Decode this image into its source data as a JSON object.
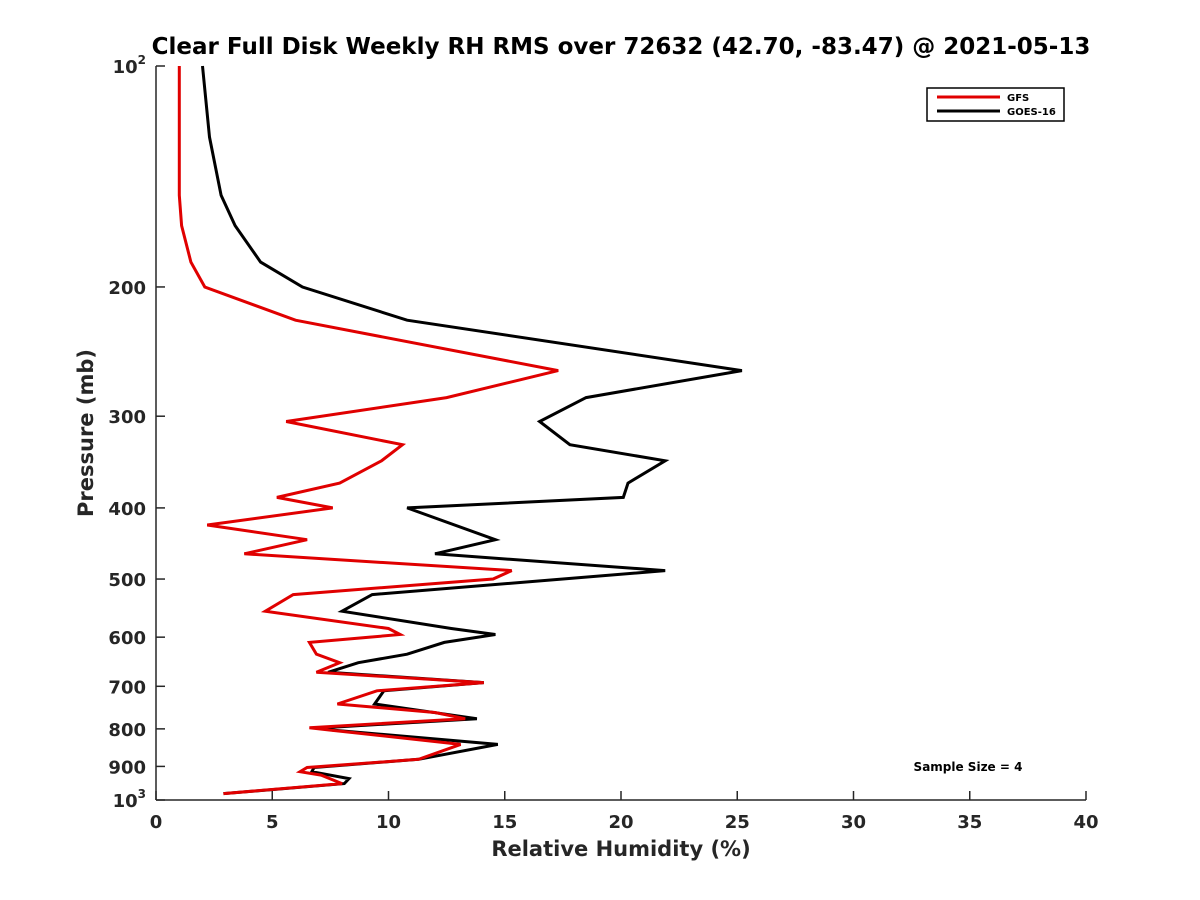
{
  "chart_data": {
    "type": "line",
    "title": "Clear Full Disk Weekly RH RMS over 72632 (42.70, -83.47) @ 2021-05-13",
    "xlabel": "Relative Humidity (%)",
    "ylabel": "Pressure (mb)",
    "xlim": [
      0,
      40
    ],
    "ylim": [
      100,
      1000
    ],
    "y_scale": "log",
    "y_reversed": true,
    "x_ticks": [
      "0",
      "5",
      "10",
      "15",
      "20",
      "25",
      "30",
      "35",
      "40"
    ],
    "y_ticks": [
      {
        "value": 100,
        "base": "10",
        "exp": "2"
      },
      {
        "value": 200,
        "label": "200"
      },
      {
        "value": 300,
        "label": "300"
      },
      {
        "value": 400,
        "label": "400"
      },
      {
        "value": 500,
        "label": "500"
      },
      {
        "value": 600,
        "label": "600"
      },
      {
        "value": 700,
        "label": "700"
      },
      {
        "value": 800,
        "label": "800"
      },
      {
        "value": 900,
        "label": "900"
      },
      {
        "value": 1000,
        "base": "10",
        "exp": "3"
      }
    ],
    "legend_position": "top-right",
    "grid": false,
    "series": [
      {
        "name": "GFS",
        "color": "#e00000",
        "points": [
          [
            1.0,
            100
          ],
          [
            1.0,
            125
          ],
          [
            1.0,
            150
          ],
          [
            1.1,
            165
          ],
          [
            1.5,
            185
          ],
          [
            2.1,
            200
          ],
          [
            6.0,
            222
          ],
          [
            17.3,
            260
          ],
          [
            12.5,
            283
          ],
          [
            5.6,
            305
          ],
          [
            10.6,
            328
          ],
          [
            9.7,
            345
          ],
          [
            7.9,
            370
          ],
          [
            5.2,
            387
          ],
          [
            7.6,
            400
          ],
          [
            2.2,
            422
          ],
          [
            6.5,
            442
          ],
          [
            3.8,
            462
          ],
          [
            15.3,
            487
          ],
          [
            14.5,
            500
          ],
          [
            5.9,
            525
          ],
          [
            4.7,
            553
          ],
          [
            10.0,
            584
          ],
          [
            10.5,
            595
          ],
          [
            6.6,
            610
          ],
          [
            6.9,
            633
          ],
          [
            7.9,
            650
          ],
          [
            6.9,
            670
          ],
          [
            14.1,
            692
          ],
          [
            9.5,
            710
          ],
          [
            7.8,
            740
          ],
          [
            12.0,
            760
          ],
          [
            13.3,
            775
          ],
          [
            6.6,
            797
          ],
          [
            7.5,
            803
          ],
          [
            13.1,
            840
          ],
          [
            11.3,
            880
          ],
          [
            6.5,
            903
          ],
          [
            6.2,
            915
          ],
          [
            7.1,
            925
          ],
          [
            8.0,
            950
          ],
          [
            2.9,
            980
          ]
        ]
      },
      {
        "name": "GOES-16",
        "color": "#000000",
        "points": [
          [
            2.0,
            100
          ],
          [
            2.3,
            125
          ],
          [
            2.8,
            150
          ],
          [
            3.4,
            165
          ],
          [
            4.5,
            185
          ],
          [
            6.3,
            200
          ],
          [
            10.8,
            222
          ],
          [
            25.2,
            260
          ],
          [
            18.5,
            283
          ],
          [
            16.5,
            305
          ],
          [
            17.8,
            328
          ],
          [
            21.9,
            345
          ],
          [
            20.3,
            370
          ],
          [
            20.1,
            387
          ],
          [
            10.8,
            400
          ],
          [
            14.6,
            442
          ],
          [
            12.0,
            462
          ],
          [
            21.9,
            487
          ],
          [
            17.5,
            500
          ],
          [
            9.3,
            525
          ],
          [
            8.0,
            553
          ],
          [
            12.7,
            584
          ],
          [
            14.6,
            595
          ],
          [
            12.4,
            610
          ],
          [
            10.8,
            633
          ],
          [
            8.7,
            650
          ],
          [
            7.4,
            670
          ],
          [
            14.1,
            692
          ],
          [
            9.8,
            710
          ],
          [
            9.4,
            740
          ],
          [
            13.8,
            775
          ],
          [
            7.2,
            797
          ],
          [
            7.6,
            803
          ],
          [
            14.7,
            840
          ],
          [
            11.3,
            880
          ],
          [
            6.8,
            903
          ],
          [
            6.7,
            915
          ],
          [
            8.3,
            935
          ],
          [
            8.1,
            950
          ],
          [
            2.9,
            980
          ]
        ]
      }
    ],
    "annotation": "Sample Size = 4"
  }
}
